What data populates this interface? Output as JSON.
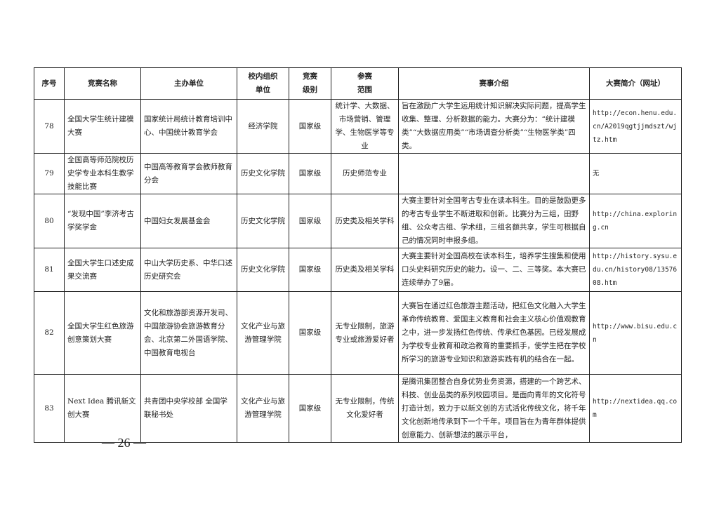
{
  "table": {
    "headers": [
      "序号",
      "竞赛名称",
      "主办单位",
      "校内组织单位",
      "竞赛级别",
      "参赛范围",
      "赛事介绍",
      "大赛简介（网址）"
    ],
    "rows": [
      {
        "no": "78",
        "name": "全国大学生统计建模大赛",
        "host": "国家统计局统计教育培训中心、中国统计教育学会",
        "org": "经济学院",
        "level": "国家级",
        "scope": "统计学、大数据、市场营销、管理学、生物医学等专业",
        "intro": "旨在激励广大学生运用统计知识解决实际问题，提高学生收集、整理、分析数据的能力。大赛分为：“统计建模类”“大数据应用类”“市场调查分析类”“生物医学类”四类。",
        "url": "http://econ.henu.edu.cn/A2019qgtjjmdszt/wjtz.htm"
      },
      {
        "no": "79",
        "name": "全国高等师范院校历史学专业本科生教学技能比赛",
        "host": "中国高等教育学会教师教育分会",
        "org": "历史文化学院",
        "level": "国家级",
        "scope": "历史师范专业",
        "intro": "",
        "url": "无"
      },
      {
        "no": "80",
        "name": "“发现中国”李济考古学奖学金",
        "host": "中国妇女发展基金会",
        "org": "历史文化学院",
        "level": "国家级",
        "scope": "历史类及相关学科",
        "intro": "大赛主要针对全国考古专业在读本科生。目的是鼓励更多的考古专业学生不断进取和创新。比赛分为三组，田野组、公众考古组、学术组，三组名额共享，学生可根据自己的情况同时申报多组。",
        "url": "http://china.exploring.cn"
      },
      {
        "no": "81",
        "name": "全国大学生口述史成果交流赛",
        "host": "中山大学历史系、中华口述历史研究会",
        "org": "历史文化学院",
        "level": "国家级",
        "scope": "历史类及相关学科",
        "intro": "大赛主要针对全国高校在读本科生，培养学生搜集和使用口头史料研究历史的能力。设一、二、三等奖。本大赛已连续举办了9届。",
        "url": "http://history.sysu.edu.cn/history08/1357608.htm"
      },
      {
        "no": "82",
        "name": "全国大学生红色旅游创意策划大赛",
        "host": "文化和旅游部资源开发司、中国旅游协会旅游教育分会、北京第二外国语学院、中国教育电视台",
        "org": "文化产业与旅游管理学院",
        "level": "国家级",
        "scope": "无专业限制，旅游专业或旅游爱好者",
        "intro": "大赛旨在通过红色旅游主题活动，把红色文化融入大学生革命传统教育、爱国主义教育和社会主义核心价值观教育之中，进一步发扬红色传统、传承红色基因。已经发展成为学校专业教育和政治教育的重要抓手，使学生把在学校所学习的旅游专业知识和旅游实践有机的结合在一起。",
        "url": "http://www.bisu.edu.cn"
      },
      {
        "no": "83",
        "name": "Next Idea 腾讯新文创大赛",
        "host": "共青团中央学校部 全国学联秘书处",
        "org": "文化产业与旅游管理学院",
        "level": "国家级",
        "scope": "无专业限制，传统文化爱好者",
        "intro": "是腾讯集团整合自身优势业务资源，搭建的一个跨艺术、科技、创业品类的系列校园项目。是面向青年的文化符号打造计划，致力于以新文创的方式活化传统文化，将千年文化创新地传承到下一个千年。项目旨在为青年群体提供创意能力、创新想法的展示平台，",
        "url": "http://nextidea.qq.com"
      }
    ]
  },
  "footer": {
    "page_number": "— 26 —"
  }
}
